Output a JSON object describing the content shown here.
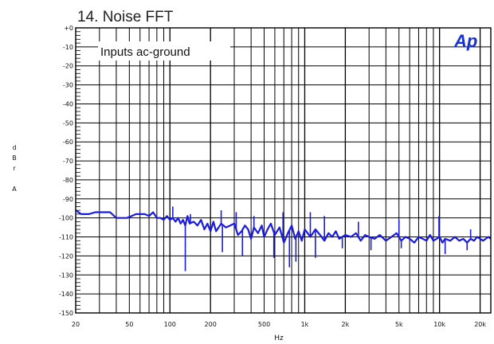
{
  "chart_data": {
    "type": "line",
    "title": "14. Noise FFT",
    "annotation": "Inputs ac-ground",
    "logo": "Ap",
    "xlabel": "Hz",
    "ylabel_lines": [
      "d",
      "B",
      "r",
      "",
      "A"
    ],
    "x_scale": "log",
    "xlim": [
      20,
      24000
    ],
    "ylim": [
      -150,
      0
    ],
    "grid": true,
    "y_tick_labels": [
      "+0",
      "-10",
      "-20",
      "-30",
      "-40",
      "-50",
      "-60",
      "-70",
      "-80",
      "-90",
      "-100",
      "-110",
      "-120",
      "-130",
      "-140",
      "-150"
    ],
    "x_tick_labels": [
      {
        "value": 20,
        "label": "20"
      },
      {
        "value": 50,
        "label": "50"
      },
      {
        "value": 100,
        "label": "100"
      },
      {
        "value": 200,
        "label": "200"
      },
      {
        "value": 500,
        "label": "500"
      },
      {
        "value": 1000,
        "label": "1k"
      },
      {
        "value": 2000,
        "label": "2k"
      },
      {
        "value": 5000,
        "label": "5k"
      },
      {
        "value": 10000,
        "label": "10k"
      },
      {
        "value": 20000,
        "label": "20k"
      }
    ],
    "series_color": "#1a1ae6",
    "series": [
      {
        "x": [
          20,
          22,
          25,
          28,
          30,
          33,
          36,
          40,
          44,
          48,
          52,
          56,
          60,
          65,
          70,
          75,
          80,
          85,
          90,
          95,
          100,
          105,
          110,
          115,
          120,
          125,
          130,
          135,
          140,
          150,
          160,
          170,
          180,
          190,
          200,
          210,
          220,
          240,
          260,
          280,
          300,
          320,
          340,
          360,
          380,
          400,
          420,
          450,
          480,
          500,
          530,
          560,
          600,
          650,
          700,
          750,
          800,
          850,
          900,
          950,
          1000,
          1050,
          1100,
          1200,
          1300,
          1400,
          1500,
          1600,
          1700,
          1800,
          2000,
          2200,
          2400,
          2600,
          2800,
          3000,
          3300,
          3600,
          4000,
          4400,
          4800,
          5200,
          5600,
          6000,
          6500,
          7000,
          7500,
          8000,
          8500,
          9000,
          9500,
          10000,
          10500,
          11000,
          12000,
          13000,
          14000,
          15000,
          16000,
          17000,
          18000,
          19000,
          20000,
          21000,
          22000,
          23000,
          24000
        ],
        "y": [
          -96,
          -98,
          -98,
          -97,
          -97,
          -97,
          -97,
          -100,
          -100,
          -100,
          -99,
          -98,
          -98,
          -98,
          -99,
          -97,
          -100,
          -100,
          -101,
          -99,
          -101,
          -100,
          -102,
          -100,
          -103,
          -101,
          -104,
          -99,
          -103,
          -102,
          -104,
          -101,
          -106,
          -103,
          -107,
          -102,
          -107,
          -103,
          -105,
          -104,
          -103,
          -109,
          -107,
          -104,
          -106,
          -111,
          -105,
          -108,
          -104,
          -110,
          -106,
          -103,
          -109,
          -105,
          -113,
          -108,
          -104,
          -111,
          -107,
          -112,
          -106,
          -108,
          -110,
          -106,
          -109,
          -112,
          -108,
          -110,
          -107,
          -111,
          -109,
          -110,
          -108,
          -112,
          -109,
          -110,
          -111,
          -109,
          -112,
          -110,
          -108,
          -112,
          -110,
          -111,
          -113,
          -110,
          -111,
          -112,
          -109,
          -112,
          -111,
          -110,
          -113,
          -111,
          -112,
          -110,
          -112,
          -111,
          -113,
          -111,
          -112,
          -110,
          -111,
          -112,
          -111,
          -110,
          -111
        ]
      }
    ],
    "spikes_down": [
      {
        "x": 130,
        "y": -128
      },
      {
        "x": 245,
        "y": -118
      },
      {
        "x": 345,
        "y": -120
      },
      {
        "x": 590,
        "y": -121
      },
      {
        "x": 770,
        "y": -126
      },
      {
        "x": 860,
        "y": -123
      },
      {
        "x": 1200,
        "y": -121
      },
      {
        "x": 1900,
        "y": -116
      },
      {
        "x": 3100,
        "y": -117
      },
      {
        "x": 5200,
        "y": -116
      },
      {
        "x": 11000,
        "y": -119
      },
      {
        "x": 16000,
        "y": -117
      }
    ],
    "spikes_up": [
      {
        "x": 105,
        "y": -94
      },
      {
        "x": 142,
        "y": -98
      },
      {
        "x": 240,
        "y": -96
      },
      {
        "x": 310,
        "y": -97
      },
      {
        "x": 420,
        "y": -99
      },
      {
        "x": 690,
        "y": -97
      },
      {
        "x": 1100,
        "y": -97
      },
      {
        "x": 1400,
        "y": -99
      },
      {
        "x": 2500,
        "y": -102
      },
      {
        "x": 5000,
        "y": -101
      },
      {
        "x": 9900,
        "y": -99
      },
      {
        "x": 17000,
        "y": -106
      }
    ]
  }
}
